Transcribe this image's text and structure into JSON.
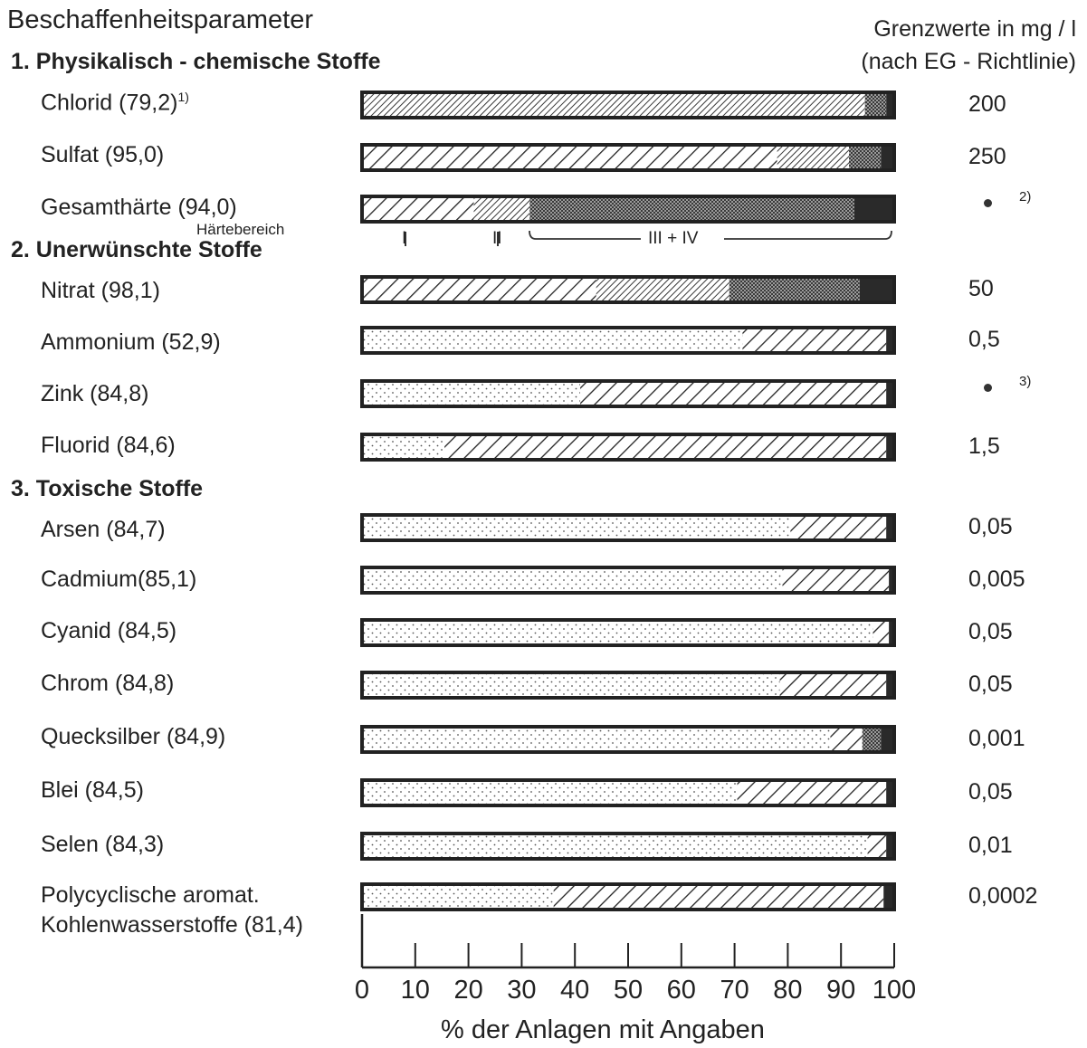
{
  "title": "Beschaffenheitsparameter",
  "limits_header": {
    "line1": "Grenzwerte in mg / l",
    "line2": "(nach EG - Richtlinie)"
  },
  "sections": [
    "1. Physikalisch - chemische Stoffe",
    "2. Unerwünschte Stoffe",
    "3. Toxische Stoffe"
  ],
  "haerte_labels": {
    "title": "Härtebereich",
    "I": "I",
    "II": "II",
    "III_IV": "III + IV"
  },
  "chart_data": {
    "type": "bar",
    "orientation": "horizontal",
    "stacked": true,
    "xlabel": "% der Anlagen mit Angaben",
    "xlim": [
      0,
      100
    ],
    "xticks": [
      0,
      10,
      20,
      30,
      40,
      50,
      60,
      70,
      80,
      90,
      100
    ],
    "segment_fills": [
      "dots",
      "hatch-wide",
      "hatch-dense",
      "crosshatch",
      "solid"
    ],
    "rows": [
      {
        "label": "Chlorid (79,2)",
        "note": "1)",
        "limit": "200",
        "segments": [
          [
            0,
            "hatch-wide"
          ],
          [
            94.5,
            "hatch-dense"
          ],
          [
            4,
            "crosshatch"
          ],
          [
            0,
            "solid"
          ],
          [
            1.5,
            "solid"
          ]
        ]
      },
      {
        "label": "Sulfat (95,0)",
        "limit": "250",
        "segments": [
          [
            0,
            "hatch-wide"
          ],
          [
            78,
            "hatch-wide"
          ],
          [
            13.5,
            "hatch-dense"
          ],
          [
            6,
            "crosshatch"
          ],
          [
            2.5,
            "solid"
          ]
        ]
      },
      {
        "label": "Gesamthärte (94,0)",
        "limit": "",
        "limit_note": "2)",
        "segments": [
          [
            21,
            "hatch-wide"
          ],
          [
            10.5,
            "hatch-dense"
          ],
          [
            61,
            "crosshatch"
          ],
          [
            7.5,
            "solid"
          ]
        ]
      },
      {
        "label": "Nitrat (98,1)",
        "limit": "50",
        "segments": [
          [
            44,
            "hatch-wide"
          ],
          [
            25,
            "hatch-dense"
          ],
          [
            24.5,
            "crosshatch"
          ],
          [
            6.5,
            "solid"
          ]
        ]
      },
      {
        "label": "Ammonium (52,9)",
        "limit": "0,5",
        "segments": [
          [
            71.5,
            "dots"
          ],
          [
            27,
            "hatch-wide"
          ],
          [
            1.5,
            "solid"
          ]
        ]
      },
      {
        "label": "Zink (84,8)",
        "limit": "",
        "limit_note": "3)",
        "segments": [
          [
            41,
            "dots"
          ],
          [
            57.5,
            "hatch-wide"
          ],
          [
            1.5,
            "solid"
          ]
        ]
      },
      {
        "label": "Fluorid (84,6)",
        "limit": "1,5",
        "segments": [
          [
            15.5,
            "dots"
          ],
          [
            83,
            "hatch-wide"
          ],
          [
            1.5,
            "solid"
          ]
        ]
      },
      {
        "label": "Arsen (84,7)",
        "limit": "0,05",
        "segments": [
          [
            80.5,
            "dots"
          ],
          [
            18,
            "hatch-wide"
          ],
          [
            1.5,
            "solid"
          ]
        ]
      },
      {
        "label": "Cadmium(85,1)",
        "limit": "0,005",
        "segments": [
          [
            79,
            "dots"
          ],
          [
            20,
            "hatch-wide"
          ],
          [
            1,
            "solid"
          ]
        ]
      },
      {
        "label": "Cyanid (84,5)",
        "limit": "0,05",
        "segments": [
          [
            96,
            "dots"
          ],
          [
            3,
            "hatch-wide"
          ],
          [
            1,
            "solid"
          ]
        ]
      },
      {
        "label": "Chrom (84,8)",
        "limit": "0,05",
        "segments": [
          [
            78.5,
            "dots"
          ],
          [
            20,
            "hatch-wide"
          ],
          [
            1.5,
            "solid"
          ]
        ]
      },
      {
        "label": "Quecksilber (84,9)",
        "limit": "0,001",
        "segments": [
          [
            88,
            "dots"
          ],
          [
            6,
            "hatch-wide"
          ],
          [
            3.5,
            "crosshatch"
          ],
          [
            2.5,
            "solid"
          ]
        ]
      },
      {
        "label": "Blei (84,5)",
        "limit": "0,05",
        "segments": [
          [
            70.5,
            "dots"
          ],
          [
            28,
            "hatch-wide"
          ],
          [
            1.5,
            "solid"
          ]
        ]
      },
      {
        "label": "Selen (84,3)",
        "limit": "0,01",
        "segments": [
          [
            95,
            "dots"
          ],
          [
            3.5,
            "hatch-wide"
          ],
          [
            1.5,
            "solid"
          ]
        ]
      },
      {
        "label": "Polycyclische aromat. Kohlenwasserstoffe (81,4)",
        "label_lines": [
          "Polycyclische aromat.",
          "Kohlenwasserstoffe (81,4)"
        ],
        "limit": "0,0002",
        "segments": [
          [
            36,
            "dots"
          ],
          [
            62,
            "hatch-wide"
          ],
          [
            2,
            "solid"
          ]
        ]
      }
    ]
  }
}
